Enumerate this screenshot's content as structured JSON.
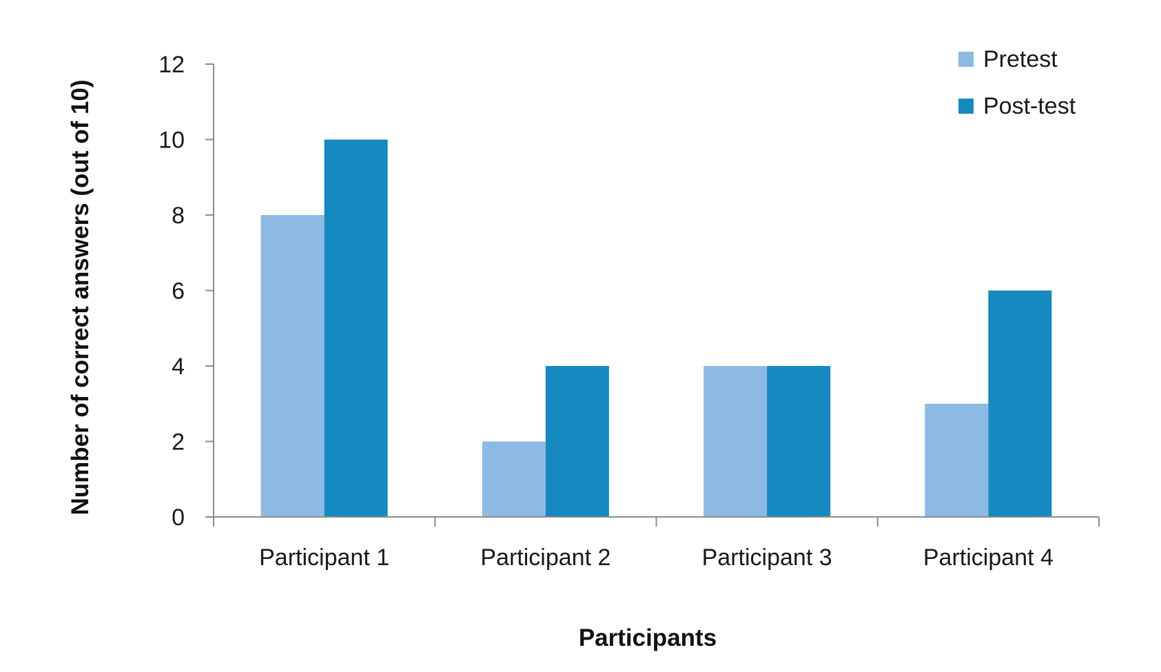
{
  "chart_data": {
    "type": "bar",
    "categories": [
      "Participant 1",
      "Participant 2",
      "Participant 3",
      "Participant 4"
    ],
    "series": [
      {
        "name": "Pretest",
        "values": [
          8,
          2,
          4,
          3
        ],
        "color": "#8cbae3"
      },
      {
        "name": "Post-test",
        "values": [
          10,
          4,
          4,
          6
        ],
        "color": "#1689c1"
      }
    ],
    "xlabel": "Participants",
    "ylabel": "Number of correct answers (out of 10)",
    "ylim": [
      0,
      12
    ],
    "yticks": [
      "0",
      "2",
      "4",
      "6",
      "8",
      "10",
      "12"
    ],
    "grid": false,
    "legend_position": "top-right"
  }
}
